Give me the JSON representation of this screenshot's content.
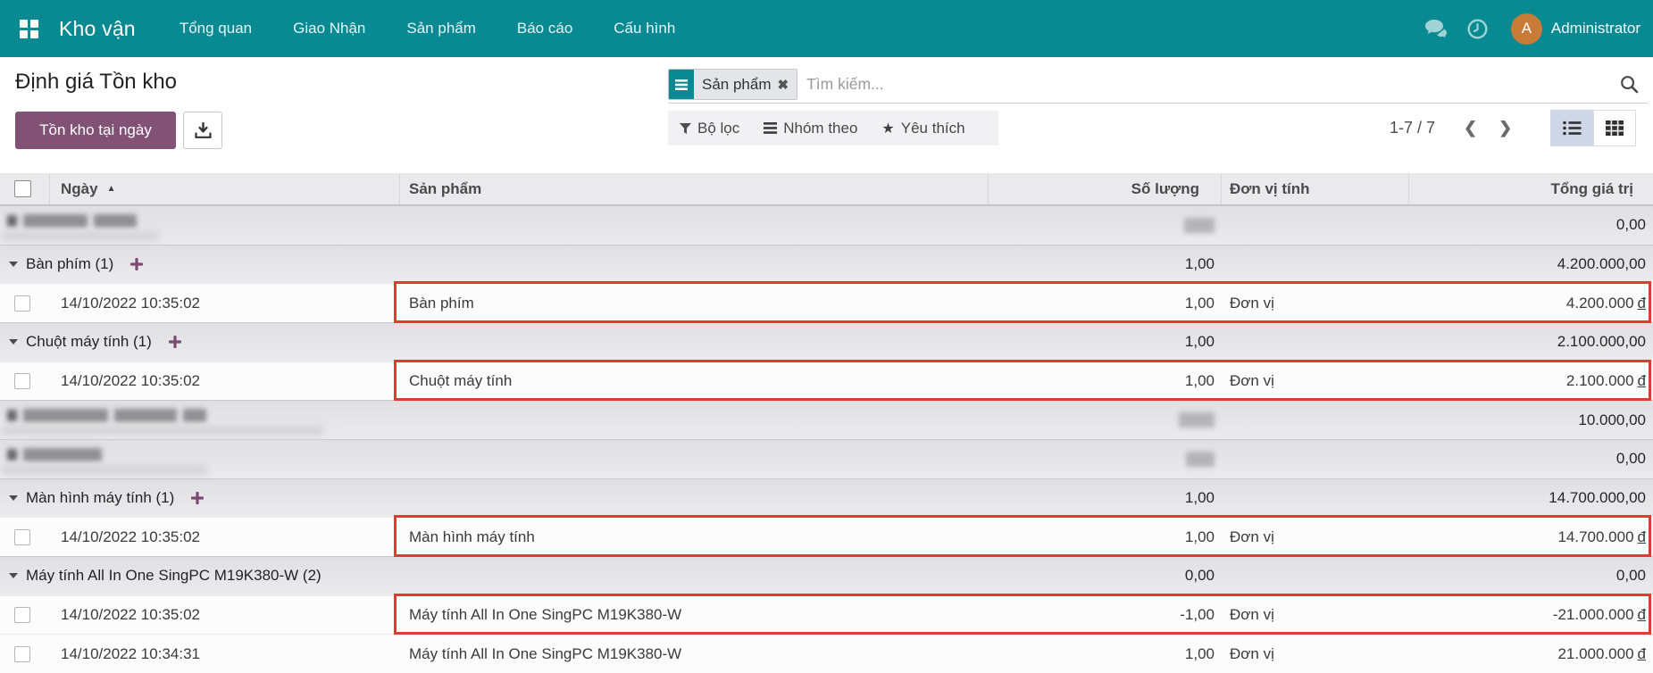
{
  "navbar": {
    "brand": "Kho vận",
    "menus": [
      "Tổng quan",
      "Giao Nhận",
      "Sản phẩm",
      "Báo cáo",
      "Cấu hình"
    ],
    "user": "Administrator",
    "avatar_letter": "A"
  },
  "header": {
    "title": "Định giá Tồn kho",
    "stock_at_date_button": "Tồn kho tại ngày"
  },
  "search": {
    "facet_label": "Sản phẩm",
    "placeholder": "Tìm kiếm..."
  },
  "controls": {
    "filter_label": "Bộ lọc",
    "group_by_label": "Nhóm theo",
    "favorites_label": "Yêu thích",
    "pager": "1-7 / 7"
  },
  "colors": {
    "navbar_teal": "#098a92",
    "primary_purple": "#825276",
    "annotation_red": "#df3b31",
    "avatar_orange": "#c97b38"
  },
  "table": {
    "headers": {
      "date": "Ngày",
      "product": "Sản phẩm",
      "qty": "Số lượng",
      "uom": "Đơn vị tính",
      "value": "Tổng giá trị"
    },
    "currency_symbol": "đ",
    "rows": [
      {
        "type": "blur",
        "value": "0,00",
        "blobs": [
          72,
          48
        ],
        "smear": 175,
        "qty_blob": 34
      },
      {
        "type": "group",
        "label": "Bàn phím (1)",
        "plus": true,
        "qty": "1,00",
        "value": "4.200.000,00"
      },
      {
        "type": "detail",
        "date": "14/10/2022 10:35:02",
        "product": "Bàn phím",
        "qty": "1,00",
        "uom": "Đơn vị",
        "value": "4.200.000",
        "red": true
      },
      {
        "type": "group",
        "label": "Chuột máy tính (1)",
        "plus": true,
        "qty": "1,00",
        "value": "2.100.000,00"
      },
      {
        "type": "detail",
        "date": "14/10/2022 10:35:02",
        "product": "Chuột máy tính",
        "qty": "1,00",
        "uom": "Đơn vị",
        "value": "2.100.000",
        "red": true
      },
      {
        "type": "blur",
        "value": "10.000,00",
        "blobs": [
          95,
          70,
          26
        ],
        "smear": 360,
        "qty_blob": 40
      },
      {
        "type": "blur",
        "value": "0,00",
        "blobs": [
          88
        ],
        "smear": 230,
        "qty_blob": 32
      },
      {
        "type": "group",
        "label": "Màn hình máy tính (1)",
        "plus": true,
        "qty": "1,00",
        "value": "14.700.000,00"
      },
      {
        "type": "detail",
        "date": "14/10/2022 10:35:02",
        "product": "Màn hình máy tính",
        "qty": "1,00",
        "uom": "Đơn vị",
        "value": "14.700.000",
        "red": true
      },
      {
        "type": "group",
        "label": "Máy tính All In One SingPC M19K380-W (2)",
        "plus": false,
        "qty": "0,00",
        "value": "0,00"
      },
      {
        "type": "detail",
        "date": "14/10/2022 10:35:02",
        "product": "Máy tính All In One SingPC M19K380-W",
        "qty": "-1,00",
        "uom": "Đơn vị",
        "value": "-21.000.000",
        "red": true
      },
      {
        "type": "detail",
        "date": "14/10/2022 10:34:31",
        "product": "Máy tính All In One SingPC M19K380-W",
        "qty": "1,00",
        "uom": "Đơn vị",
        "value": "21.000.000",
        "red": false
      }
    ]
  }
}
